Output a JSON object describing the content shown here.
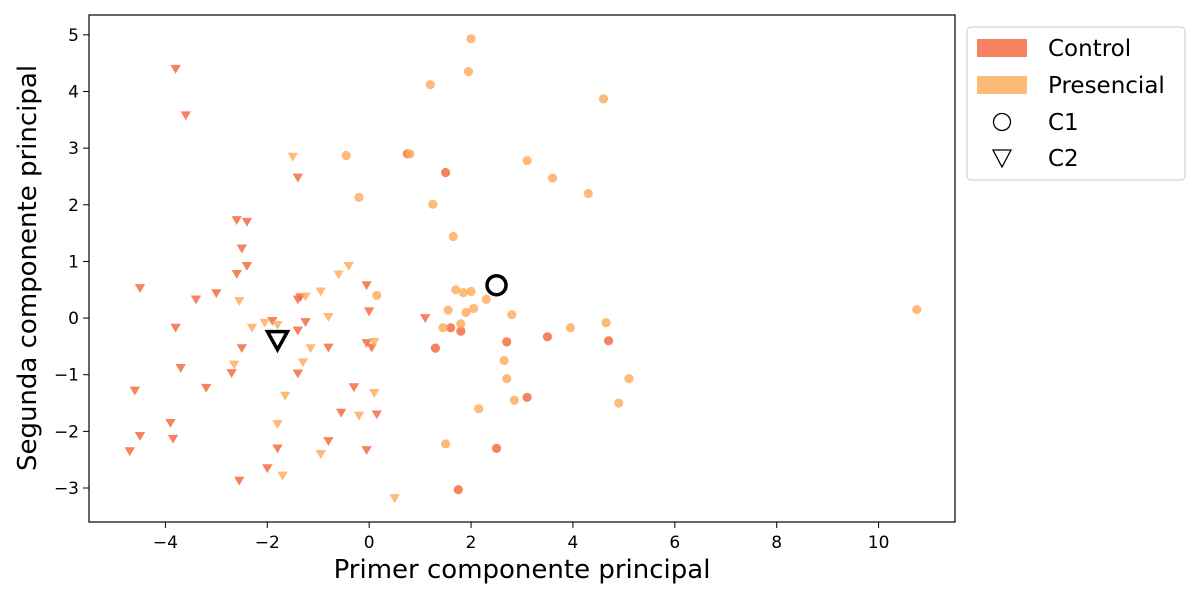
{
  "chart_data": {
    "type": "scatter",
    "xlabel": "Primer componente principal",
    "ylabel": "Segunda componente principal",
    "xlim": [
      -5.5,
      11.5
    ],
    "ylim": [
      -3.6,
      5.35
    ],
    "xticks": [
      -4,
      -2,
      0,
      2,
      4,
      6,
      8,
      10
    ],
    "yticks": [
      -3,
      -2,
      -1,
      0,
      1,
      2,
      3,
      4,
      5
    ],
    "grid": false,
    "legend_position": "outside-top-right",
    "colors": {
      "Control": "#f46d43",
      "Presencial": "#fdae61",
      "centroid": "#000000"
    },
    "legend": [
      {
        "label": "Control",
        "kind": "patch",
        "color": "#f46d43"
      },
      {
        "label": "Presencial",
        "kind": "patch",
        "color": "#fdae61"
      },
      {
        "label": "C1",
        "kind": "marker",
        "shape": "circle"
      },
      {
        "label": "C2",
        "kind": "marker",
        "shape": "triangle"
      }
    ],
    "series": [
      {
        "name": "Control",
        "cluster": "C1",
        "shape": "circle",
        "color": "#f46d43",
        "points": [
          [
            0.75,
            2.9
          ],
          [
            1.5,
            2.57
          ],
          [
            1.6,
            -0.17
          ],
          [
            1.8,
            -0.23
          ],
          [
            1.3,
            -0.53
          ],
          [
            2.7,
            -0.42
          ],
          [
            3.5,
            -0.33
          ],
          [
            4.7,
            -0.4
          ],
          [
            3.1,
            -1.4
          ],
          [
            2.5,
            -2.3
          ],
          [
            1.75,
            -3.03
          ]
        ]
      },
      {
        "name": "Presencial",
        "cluster": "C1",
        "shape": "circle",
        "color": "#fdae61",
        "points": [
          [
            2.0,
            4.93
          ],
          [
            1.95,
            4.35
          ],
          [
            1.2,
            4.12
          ],
          [
            4.6,
            3.87
          ],
          [
            -0.45,
            2.87
          ],
          [
            0.8,
            2.9
          ],
          [
            3.1,
            2.78
          ],
          [
            3.6,
            2.47
          ],
          [
            4.3,
            2.2
          ],
          [
            -0.2,
            2.13
          ],
          [
            1.25,
            2.01
          ],
          [
            1.65,
            1.44
          ],
          [
            1.7,
            0.5
          ],
          [
            1.85,
            0.45
          ],
          [
            2.0,
            0.47
          ],
          [
            2.3,
            0.33
          ],
          [
            0.15,
            0.4
          ],
          [
            1.55,
            0.14
          ],
          [
            2.05,
            0.17
          ],
          [
            1.9,
            0.1
          ],
          [
            2.8,
            0.06
          ],
          [
            1.8,
            -0.1
          ],
          [
            1.45,
            -0.17
          ],
          [
            3.95,
            -0.17
          ],
          [
            4.65,
            -0.08
          ],
          [
            2.65,
            -0.75
          ],
          [
            2.7,
            -1.07
          ],
          [
            5.1,
            -1.07
          ],
          [
            2.85,
            -1.45
          ],
          [
            4.9,
            -1.5
          ],
          [
            2.15,
            -1.6
          ],
          [
            1.5,
            -2.22
          ],
          [
            10.75,
            0.15
          ]
        ]
      },
      {
        "name": "Control",
        "cluster": "C2",
        "shape": "triangle",
        "color": "#f46d43",
        "points": [
          [
            -3.8,
            4.4
          ],
          [
            -3.6,
            3.58
          ],
          [
            -1.4,
            2.48
          ],
          [
            -2.6,
            1.73
          ],
          [
            -2.4,
            1.7
          ],
          [
            -2.5,
            1.23
          ],
          [
            -2.4,
            0.92
          ],
          [
            -2.6,
            0.78
          ],
          [
            -4.5,
            0.53
          ],
          [
            -3.0,
            0.44
          ],
          [
            -3.4,
            0.33
          ],
          [
            -1.4,
            0.33
          ],
          [
            -1.35,
            0.37
          ],
          [
            -0.05,
            0.58
          ],
          [
            0.0,
            0.12
          ],
          [
            1.1,
            0.0
          ],
          [
            -1.9,
            -0.05
          ],
          [
            -1.25,
            -0.07
          ],
          [
            -3.8,
            -0.17
          ],
          [
            -1.4,
            -0.22
          ],
          [
            -2.5,
            -0.53
          ],
          [
            -0.8,
            -0.52
          ],
          [
            -0.05,
            -0.44
          ],
          [
            0.05,
            -0.52
          ],
          [
            -3.7,
            -0.88
          ],
          [
            -2.7,
            -0.97
          ],
          [
            -1.4,
            -0.98
          ],
          [
            -3.2,
            -1.23
          ],
          [
            -4.6,
            -1.28
          ],
          [
            -0.3,
            -1.22
          ],
          [
            -0.55,
            -1.67
          ],
          [
            0.15,
            -1.7
          ],
          [
            -3.9,
            -1.85
          ],
          [
            -4.5,
            -2.08
          ],
          [
            -3.85,
            -2.13
          ],
          [
            -0.8,
            -2.17
          ],
          [
            -1.8,
            -2.3
          ],
          [
            -0.05,
            -2.33
          ],
          [
            -4.7,
            -2.35
          ],
          [
            -2.0,
            -2.65
          ],
          [
            -2.55,
            -2.87
          ]
        ]
      },
      {
        "name": "Presencial",
        "cluster": "C2",
        "shape": "triangle",
        "color": "#fdae61",
        "points": [
          [
            -1.5,
            2.85
          ],
          [
            -0.4,
            0.92
          ],
          [
            -0.6,
            0.77
          ],
          [
            -0.95,
            0.47
          ],
          [
            -1.25,
            0.38
          ],
          [
            -2.55,
            0.3
          ],
          [
            -0.8,
            0.02
          ],
          [
            -2.3,
            -0.17
          ],
          [
            -2.05,
            -0.08
          ],
          [
            -1.8,
            -0.12
          ],
          [
            0.1,
            -0.42
          ],
          [
            -1.15,
            -0.53
          ],
          [
            -1.3,
            -0.78
          ],
          [
            -2.65,
            -0.82
          ],
          [
            -1.65,
            -1.37
          ],
          [
            0.1,
            -1.32
          ],
          [
            -0.2,
            -1.72
          ],
          [
            -1.8,
            -1.87
          ],
          [
            -0.95,
            -2.4
          ],
          [
            -1.7,
            -2.78
          ],
          [
            0.5,
            -3.18
          ]
        ]
      }
    ],
    "centroids": [
      {
        "label": "C1",
        "shape": "circle",
        "x": 2.5,
        "y": 0.58
      },
      {
        "label": "C2",
        "shape": "triangle",
        "x": -1.8,
        "y": -0.38
      }
    ]
  }
}
